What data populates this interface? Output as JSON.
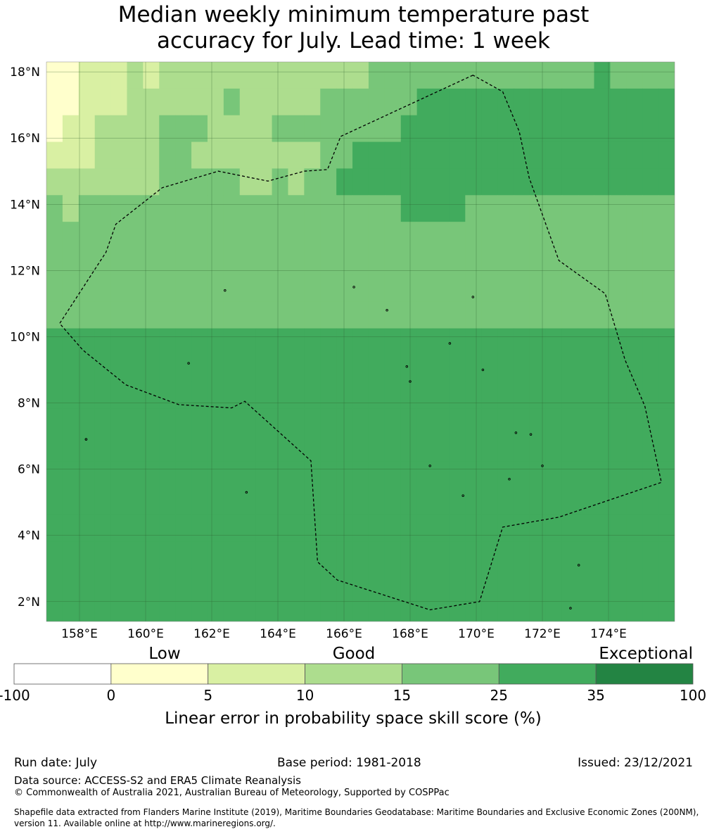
{
  "title": {
    "line1": "Median weekly minimum temperature past",
    "line2": "accuracy for July. Lead time: 1 week"
  },
  "map": {
    "lon_ticks": [
      "158°E",
      "160°E",
      "162°E",
      "164°E",
      "166°E",
      "168°E",
      "170°E",
      "172°E",
      "174°E"
    ],
    "lat_ticks": [
      "18°N",
      "16°N",
      "14°N",
      "12°N",
      "10°N",
      "8°N",
      "6°N",
      "4°N",
      "2°N"
    ],
    "lon_values": [
      158,
      160,
      162,
      164,
      166,
      168,
      170,
      172,
      174
    ],
    "lat_values": [
      18,
      16,
      14,
      12,
      10,
      8,
      6,
      4,
      2
    ],
    "extent": {
      "lon_min": 157,
      "lon_max": 176,
      "lat_min": 1.4,
      "lat_max": 18.3
    },
    "cell_deg": 0.8333,
    "boundary_polygon_lonlat": [
      [
        169.9,
        17.9
      ],
      [
        165.9,
        16.05
      ],
      [
        165.5,
        15.05
      ],
      [
        164.8,
        15.0
      ],
      [
        163.7,
        14.7
      ],
      [
        162.2,
        15.0
      ],
      [
        160.5,
        14.5
      ],
      [
        159.1,
        13.4
      ],
      [
        158.8,
        12.55
      ],
      [
        157.4,
        10.4
      ],
      [
        158.1,
        9.6
      ],
      [
        159.4,
        8.55
      ],
      [
        161.0,
        7.95
      ],
      [
        162.6,
        7.85
      ],
      [
        163.0,
        8.05
      ],
      [
        165.0,
        6.25
      ],
      [
        165.2,
        3.2
      ],
      [
        165.8,
        2.65
      ],
      [
        168.6,
        1.75
      ],
      [
        170.1,
        2.0
      ],
      [
        170.8,
        4.25
      ],
      [
        172.5,
        4.55
      ],
      [
        175.6,
        5.6
      ],
      [
        175.1,
        7.9
      ],
      [
        174.5,
        9.3
      ],
      [
        173.9,
        11.3
      ],
      [
        172.5,
        12.3
      ],
      [
        171.6,
        14.8
      ],
      [
        171.3,
        16.2
      ],
      [
        170.8,
        17.4
      ]
    ],
    "atoll_points_lonlat": [
      [
        158.2,
        6.9
      ],
      [
        158.2,
        6.9
      ],
      [
        163.05,
        5.3
      ],
      [
        171.2,
        7.1
      ],
      [
        171.65,
        7.05
      ],
      [
        169.9,
        11.2
      ],
      [
        166.3,
        11.5
      ],
      [
        167.3,
        10.8
      ],
      [
        169.2,
        9.8
      ],
      [
        168.6,
        6.1
      ],
      [
        173.1,
        3.1
      ],
      [
        172.85,
        1.8
      ],
      [
        167.9,
        9.1
      ],
      [
        171.0,
        5.7
      ],
      [
        169.6,
        5.2
      ],
      [
        161.3,
        9.2
      ],
      [
        162.4,
        11.4
      ],
      [
        168.0,
        8.65
      ],
      [
        170.2,
        9.0
      ],
      [
        172.0,
        6.1
      ]
    ],
    "score_grid_top_to_bottom": [
      [
        1,
        1,
        2,
        2,
        2,
        3,
        2,
        3,
        3,
        3,
        3,
        3,
        3,
        3,
        3,
        3,
        3,
        3,
        3,
        3,
        4,
        4,
        4,
        4,
        4,
        4,
        4,
        4,
        4,
        4,
        4,
        4,
        4,
        4,
        5,
        4,
        4,
        4,
        4
      ],
      [
        1,
        1,
        2,
        2,
        2,
        3,
        3,
        3,
        3,
        3,
        3,
        4,
        3,
        3,
        3,
        3,
        3,
        4,
        4,
        4,
        4,
        4,
        4,
        5,
        5,
        5,
        5,
        5,
        5,
        5,
        5,
        5,
        5,
        5,
        5,
        5,
        5,
        5,
        5
      ],
      [
        1,
        2,
        2,
        3,
        3,
        3,
        3,
        4,
        4,
        4,
        3,
        3,
        3,
        3,
        4,
        4,
        4,
        4,
        4,
        4,
        4,
        4,
        5,
        5,
        5,
        5,
        5,
        5,
        5,
        5,
        5,
        5,
        5,
        5,
        5,
        5,
        5,
        5,
        5
      ],
      [
        2,
        2,
        2,
        3,
        3,
        3,
        3,
        4,
        4,
        3,
        3,
        3,
        3,
        3,
        3,
        3,
        3,
        4,
        4,
        5,
        5,
        5,
        5,
        5,
        5,
        5,
        5,
        5,
        5,
        5,
        5,
        5,
        5,
        5,
        5,
        5,
        5,
        5,
        5
      ],
      [
        3,
        3,
        3,
        3,
        3,
        3,
        3,
        4,
        4,
        4,
        4,
        4,
        3,
        3,
        4,
        3,
        4,
        4,
        5,
        5,
        5,
        5,
        5,
        5,
        5,
        5,
        5,
        5,
        5,
        5,
        5,
        5,
        5,
        5,
        5,
        5,
        5,
        5,
        5
      ],
      [
        4,
        3,
        4,
        4,
        4,
        4,
        4,
        4,
        4,
        4,
        4,
        4,
        4,
        4,
        4,
        4,
        4,
        4,
        4,
        4,
        4,
        4,
        5,
        5,
        5,
        5,
        4,
        4,
        4,
        4,
        4,
        4,
        4,
        4,
        4,
        4,
        4,
        4,
        4
      ],
      [
        4,
        4,
        4,
        4,
        4,
        4,
        4,
        4,
        4,
        4,
        4,
        4,
        4,
        4,
        4,
        4,
        4,
        4,
        4,
        4,
        4,
        4,
        4,
        4,
        4,
        4,
        4,
        4,
        4,
        4,
        4,
        4,
        4,
        4,
        4,
        4,
        4,
        4,
        4
      ],
      [
        4,
        4,
        4,
        4,
        4,
        4,
        4,
        4,
        4,
        4,
        4,
        4,
        4,
        4,
        4,
        4,
        4,
        4,
        4,
        4,
        4,
        4,
        4,
        4,
        4,
        4,
        4,
        4,
        4,
        4,
        4,
        4,
        4,
        4,
        4,
        4,
        4,
        4,
        4
      ],
      [
        4,
        4,
        4,
        4,
        4,
        4,
        4,
        4,
        4,
        4,
        4,
        4,
        4,
        4,
        4,
        4,
        4,
        4,
        4,
        4,
        4,
        4,
        4,
        4,
        4,
        4,
        4,
        4,
        4,
        4,
        4,
        4,
        4,
        4,
        4,
        4,
        4,
        4,
        4
      ],
      [
        4,
        4,
        4,
        4,
        4,
        4,
        4,
        4,
        4,
        4,
        4,
        4,
        4,
        4,
        4,
        4,
        4,
        4,
        4,
        4,
        4,
        4,
        4,
        4,
        4,
        4,
        4,
        4,
        4,
        4,
        4,
        4,
        4,
        4,
        4,
        4,
        4,
        4,
        4
      ],
      [
        5,
        5,
        5,
        5,
        5,
        5,
        5,
        5,
        5,
        5,
        5,
        5,
        5,
        5,
        5,
        5,
        5,
        5,
        5,
        5,
        5,
        5,
        5,
        5,
        5,
        5,
        5,
        5,
        5,
        5,
        5,
        5,
        5,
        5,
        5,
        5,
        5,
        5,
        5
      ],
      [
        5,
        5,
        5,
        5,
        5,
        5,
        5,
        5,
        5,
        5,
        5,
        5,
        5,
        5,
        5,
        5,
        5,
        5,
        5,
        5,
        5,
        5,
        5,
        5,
        5,
        5,
        5,
        5,
        5,
        5,
        5,
        5,
        5,
        5,
        5,
        5,
        5,
        5,
        5
      ],
      [
        5,
        5,
        5,
        5,
        5,
        5,
        5,
        5,
        5,
        5,
        5,
        5,
        5,
        5,
        5,
        5,
        5,
        5,
        5,
        5,
        5,
        5,
        5,
        5,
        5,
        5,
        5,
        5,
        5,
        5,
        5,
        5,
        5,
        5,
        5,
        5,
        5,
        5,
        5
      ],
      [
        5,
        5,
        5,
        5,
        5,
        5,
        5,
        5,
        5,
        5,
        5,
        5,
        5,
        5,
        5,
        5,
        5,
        5,
        5,
        5,
        5,
        5,
        5,
        5,
        5,
        5,
        5,
        5,
        5,
        5,
        5,
        5,
        5,
        5,
        5,
        5,
        5,
        5,
        5
      ],
      [
        5,
        5,
        5,
        5,
        5,
        5,
        5,
        5,
        5,
        5,
        5,
        5,
        5,
        5,
        5,
        5,
        5,
        5,
        5,
        5,
        5,
        5,
        5,
        5,
        5,
        5,
        5,
        5,
        5,
        5,
        5,
        5,
        5,
        5,
        5,
        5,
        5,
        5,
        5
      ],
      [
        5,
        5,
        5,
        5,
        5,
        5,
        5,
        5,
        5,
        5,
        5,
        5,
        5,
        5,
        5,
        5,
        5,
        5,
        5,
        5,
        5,
        5,
        5,
        5,
        5,
        5,
        5,
        5,
        5,
        5,
        5,
        5,
        5,
        5,
        5,
        5,
        5,
        5,
        5
      ],
      [
        5,
        5,
        5,
        5,
        5,
        5,
        5,
        5,
        5,
        5,
        5,
        5,
        5,
        5,
        5,
        5,
        5,
        5,
        5,
        5,
        5,
        5,
        5,
        5,
        5,
        5,
        5,
        5,
        5,
        5,
        5,
        5,
        5,
        5,
        5,
        5,
        5,
        5,
        5
      ],
      [
        5,
        5,
        5,
        5,
        5,
        5,
        5,
        5,
        5,
        5,
        5,
        5,
        5,
        5,
        5,
        5,
        5,
        5,
        5,
        5,
        5,
        5,
        5,
        5,
        5,
        5,
        5,
        5,
        5,
        5,
        5,
        5,
        5,
        5,
        5,
        5,
        5,
        5,
        5
      ],
      [
        5,
        5,
        5,
        5,
        5,
        5,
        5,
        5,
        5,
        5,
        5,
        5,
        5,
        5,
        5,
        5,
        5,
        5,
        5,
        5,
        5,
        5,
        5,
        5,
        5,
        5,
        5,
        5,
        5,
        5,
        5,
        5,
        5,
        5,
        5,
        5,
        5,
        5,
        5
      ],
      [
        5,
        5,
        5,
        5,
        5,
        5,
        5,
        5,
        5,
        5,
        5,
        5,
        5,
        5,
        5,
        5,
        5,
        5,
        5,
        5,
        5,
        5,
        5,
        5,
        5,
        5,
        5,
        5,
        5,
        5,
        5,
        5,
        5,
        5,
        5,
        5,
        5,
        5,
        5
      ],
      [
        5,
        5,
        5,
        5,
        5,
        5,
        5,
        5,
        5,
        5,
        5,
        5,
        5,
        5,
        5,
        5,
        5,
        5,
        5,
        5,
        5,
        5,
        5,
        5,
        5,
        5,
        5,
        5,
        5,
        5,
        5,
        5,
        5,
        5,
        5,
        5,
        5,
        5,
        5
      ]
    ]
  },
  "colorbar": {
    "category_labels": [
      "Low",
      "Good",
      "Exceptional"
    ],
    "boundaries": [
      "-100",
      "0",
      "5",
      "10",
      "15",
      "25",
      "35",
      "100"
    ],
    "colors": [
      "#ffffff",
      "#ffffcc",
      "#d9f0a3",
      "#addd8e",
      "#78c679",
      "#41ab5d",
      "#238443"
    ],
    "xlabel": "Linear error in probability space skill score (%)"
  },
  "footer": {
    "run_date": "Run date: July",
    "base_period": "Base period: 1981-2018",
    "issued": "Issued: 23/12/2021",
    "data_source": "Data source: ACCESS-S2 and ERA5 Climate Reanalysis",
    "copyright": "© Commonwealth of Australia 2021, Australian Bureau of Meteorology, Supported by COSPPac",
    "shapefile_line1": "Shapefile data extracted from Flanders Marine Institute (2019), Maritime Boundaries Geodatabase: Maritime Boundaries and Exclusive Economic Zones (200NM),",
    "shapefile_line2": "version 11. Available online at http://www.marineregions.org/."
  }
}
